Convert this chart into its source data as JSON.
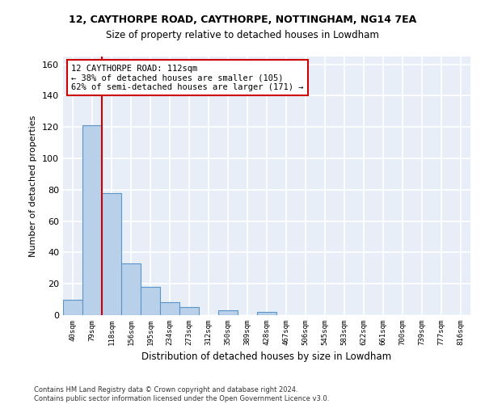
{
  "title1": "12, CAYTHORPE ROAD, CAYTHORPE, NOTTINGHAM, NG14 7EA",
  "title2": "Size of property relative to detached houses in Lowdham",
  "xlabel": "Distribution of detached houses by size in Lowdham",
  "ylabel": "Number of detached properties",
  "bar_labels": [
    "40sqm",
    "79sqm",
    "118sqm",
    "156sqm",
    "195sqm",
    "234sqm",
    "273sqm",
    "312sqm",
    "350sqm",
    "389sqm",
    "428sqm",
    "467sqm",
    "506sqm",
    "545sqm",
    "583sqm",
    "622sqm",
    "661sqm",
    "700sqm",
    "739sqm",
    "777sqm",
    "816sqm"
  ],
  "bar_values": [
    10,
    121,
    78,
    33,
    18,
    8,
    5,
    0,
    3,
    0,
    2,
    0,
    0,
    0,
    0,
    0,
    0,
    0,
    0,
    0,
    0
  ],
  "bar_color": "#b8d0ea",
  "bar_edge_color": "#5a96c8",
  "background_color": "#e8eef8",
  "grid_color": "#ffffff",
  "vline_color": "#cc0000",
  "annotation_text": "12 CAYTHORPE ROAD: 112sqm\n← 38% of detached houses are smaller (105)\n62% of semi-detached houses are larger (171) →",
  "annotation_box_color": "#ffffff",
  "annotation_box_edge": "#cc0000",
  "ylim": [
    0,
    165
  ],
  "yticks": [
    0,
    20,
    40,
    60,
    80,
    100,
    120,
    140,
    160
  ],
  "footnote": "Contains HM Land Registry data © Crown copyright and database right 2024.\nContains public sector information licensed under the Open Government Licence v3.0."
}
